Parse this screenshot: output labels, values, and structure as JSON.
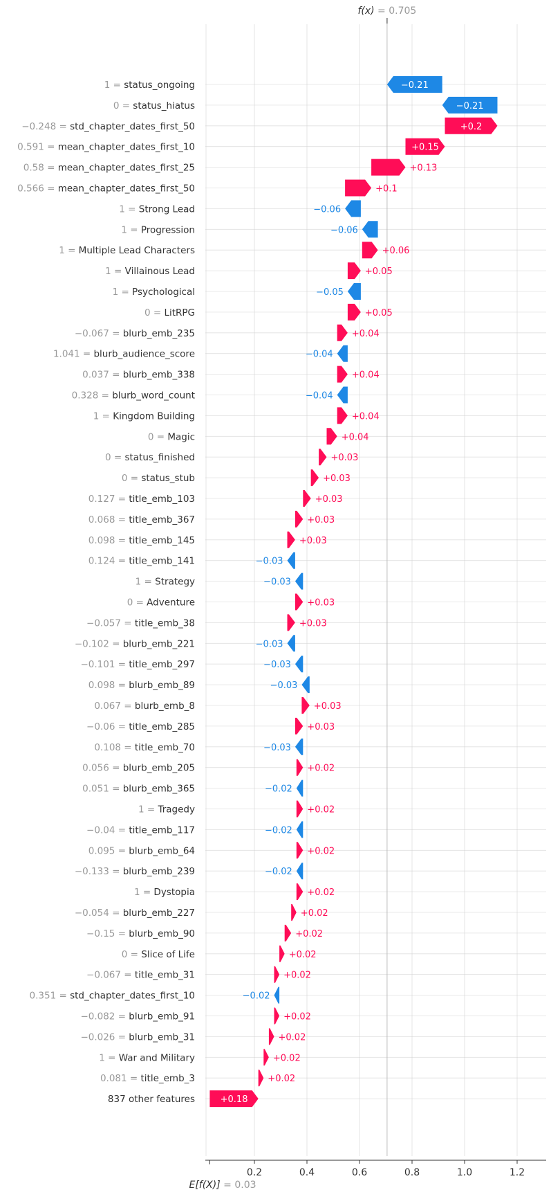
{
  "chart_data": {
    "type": "waterfall",
    "title": "",
    "fx_label": "f(x)",
    "fx_value": "0.705",
    "fx_numeric": 0.705,
    "base_label": "E[f(X)]",
    "base_value": "0.03",
    "base_numeric": 0.03,
    "xlim": [
      -0.02,
      1.3
    ],
    "xticks": [
      "0.2",
      "0.4",
      "0.6",
      "0.8",
      "1.0",
      "1.2"
    ],
    "xtick_values": [
      0.2,
      0.4,
      0.6,
      0.8,
      1.0,
      1.2
    ],
    "colors": {
      "positive": "#ff0d57",
      "negative": "#1e88e5",
      "grid": "#e6e6e6"
    },
    "features": [
      {
        "value": "1",
        "name": "status_ongoing",
        "label": "−0.21",
        "start": 0.915,
        "end": 0.705
      },
      {
        "value": "0",
        "name": "status_hiatus",
        "label": "−0.21",
        "start": 1.125,
        "end": 0.915
      },
      {
        "value": "−0.248",
        "name": "std_chapter_dates_first_50",
        "label": "+0.2",
        "start": 0.925,
        "end": 1.125
      },
      {
        "value": "0.591",
        "name": "mean_chapter_dates_first_10",
        "label": "+0.15",
        "start": 0.775,
        "end": 0.925
      },
      {
        "value": "0.58",
        "name": "mean_chapter_dates_first_25",
        "label": "+0.13",
        "start": 0.645,
        "end": 0.775
      },
      {
        "value": "0.566",
        "name": "mean_chapter_dates_first_50",
        "label": "+0.1",
        "start": 0.545,
        "end": 0.645
      },
      {
        "value": "1",
        "name": "Strong Lead",
        "label": "−0.06",
        "start": 0.605,
        "end": 0.545
      },
      {
        "value": "1",
        "name": "Progression",
        "label": "−0.06",
        "start": 0.67,
        "end": 0.61
      },
      {
        "value": "1",
        "name": "Multiple Lead Characters",
        "label": "+0.06",
        "start": 0.61,
        "end": 0.67
      },
      {
        "value": "1",
        "name": "Villainous Lead",
        "label": "+0.05",
        "start": 0.555,
        "end": 0.605
      },
      {
        "value": "1",
        "name": "Psychological",
        "label": "−0.05",
        "start": 0.605,
        "end": 0.555
      },
      {
        "value": "0",
        "name": "LitRPG",
        "label": "+0.05",
        "start": 0.555,
        "end": 0.605
      },
      {
        "value": "−0.067",
        "name": "blurb_emb_235",
        "label": "+0.04",
        "start": 0.515,
        "end": 0.555
      },
      {
        "value": "1.041",
        "name": "blurb_audience_score",
        "label": "−0.04",
        "start": 0.555,
        "end": 0.515
      },
      {
        "value": "0.037",
        "name": "blurb_emb_338",
        "label": "+0.04",
        "start": 0.515,
        "end": 0.555
      },
      {
        "value": "0.328",
        "name": "blurb_word_count",
        "label": "−0.04",
        "start": 0.555,
        "end": 0.515
      },
      {
        "value": "1",
        "name": "Kingdom Building",
        "label": "+0.04",
        "start": 0.515,
        "end": 0.555
      },
      {
        "value": "0",
        "name": "Magic",
        "label": "+0.04",
        "start": 0.475,
        "end": 0.515
      },
      {
        "value": "0",
        "name": "status_finished",
        "label": "+0.03",
        "start": 0.445,
        "end": 0.475
      },
      {
        "value": "0",
        "name": "status_stub",
        "label": "+0.03",
        "start": 0.415,
        "end": 0.445
      },
      {
        "value": "0.127",
        "name": "title_emb_103",
        "label": "+0.03",
        "start": 0.385,
        "end": 0.415
      },
      {
        "value": "0.068",
        "name": "title_emb_367",
        "label": "+0.03",
        "start": 0.355,
        "end": 0.385
      },
      {
        "value": "0.098",
        "name": "title_emb_145",
        "label": "+0.03",
        "start": 0.325,
        "end": 0.355
      },
      {
        "value": "0.124",
        "name": "title_emb_141",
        "label": "−0.03",
        "start": 0.355,
        "end": 0.325
      },
      {
        "value": "1",
        "name": "Strategy",
        "label": "−0.03",
        "start": 0.385,
        "end": 0.355
      },
      {
        "value": "0",
        "name": "Adventure",
        "label": "+0.03",
        "start": 0.355,
        "end": 0.385
      },
      {
        "value": "−0.057",
        "name": "title_emb_38",
        "label": "+0.03",
        "start": 0.325,
        "end": 0.355
      },
      {
        "value": "−0.102",
        "name": "blurb_emb_221",
        "label": "−0.03",
        "start": 0.355,
        "end": 0.325
      },
      {
        "value": "−0.101",
        "name": "title_emb_297",
        "label": "−0.03",
        "start": 0.385,
        "end": 0.355
      },
      {
        "value": "0.098",
        "name": "blurb_emb_89",
        "label": "−0.03",
        "start": 0.41,
        "end": 0.38
      },
      {
        "value": "0.067",
        "name": "blurb_emb_8",
        "label": "+0.03",
        "start": 0.38,
        "end": 0.41
      },
      {
        "value": "−0.06",
        "name": "title_emb_285",
        "label": "+0.03",
        "start": 0.355,
        "end": 0.385
      },
      {
        "value": "0.108",
        "name": "title_emb_70",
        "label": "−0.03",
        "start": 0.385,
        "end": 0.355
      },
      {
        "value": "0.056",
        "name": "blurb_emb_205",
        "label": "+0.02",
        "start": 0.36,
        "end": 0.385
      },
      {
        "value": "0.051",
        "name": "blurb_emb_365",
        "label": "−0.02",
        "start": 0.385,
        "end": 0.36
      },
      {
        "value": "1",
        "name": "Tragedy",
        "label": "+0.02",
        "start": 0.36,
        "end": 0.385
      },
      {
        "value": "−0.04",
        "name": "title_emb_117",
        "label": "−0.02",
        "start": 0.385,
        "end": 0.36
      },
      {
        "value": "0.095",
        "name": "blurb_emb_64",
        "label": "+0.02",
        "start": 0.36,
        "end": 0.385
      },
      {
        "value": "−0.133",
        "name": "blurb_emb_239",
        "label": "−0.02",
        "start": 0.385,
        "end": 0.36
      },
      {
        "value": "1",
        "name": "Dystopia",
        "label": "+0.02",
        "start": 0.36,
        "end": 0.385
      },
      {
        "value": "−0.054",
        "name": "blurb_emb_227",
        "label": "+0.02",
        "start": 0.34,
        "end": 0.36
      },
      {
        "value": "−0.15",
        "name": "blurb_emb_90",
        "label": "+0.02",
        "start": 0.315,
        "end": 0.34
      },
      {
        "value": "0",
        "name": "Slice of Life",
        "label": "+0.02",
        "start": 0.295,
        "end": 0.315
      },
      {
        "value": "−0.067",
        "name": "title_emb_31",
        "label": "+0.02",
        "start": 0.275,
        "end": 0.295
      },
      {
        "value": "0.351",
        "name": "std_chapter_dates_first_10",
        "label": "−0.02",
        "start": 0.295,
        "end": 0.275
      },
      {
        "value": "−0.082",
        "name": "blurb_emb_91",
        "label": "+0.02",
        "start": 0.275,
        "end": 0.295
      },
      {
        "value": "−0.026",
        "name": "blurb_emb_31",
        "label": "+0.02",
        "start": 0.255,
        "end": 0.275
      },
      {
        "value": "1",
        "name": "War and Military",
        "label": "+0.02",
        "start": 0.235,
        "end": 0.255
      },
      {
        "value": "0.081",
        "name": "title_emb_3",
        "label": "+0.02",
        "start": 0.215,
        "end": 0.235
      },
      {
        "value": "",
        "name": "837 other features",
        "label": "+0.18",
        "start": 0.03,
        "end": 0.215
      }
    ]
  }
}
